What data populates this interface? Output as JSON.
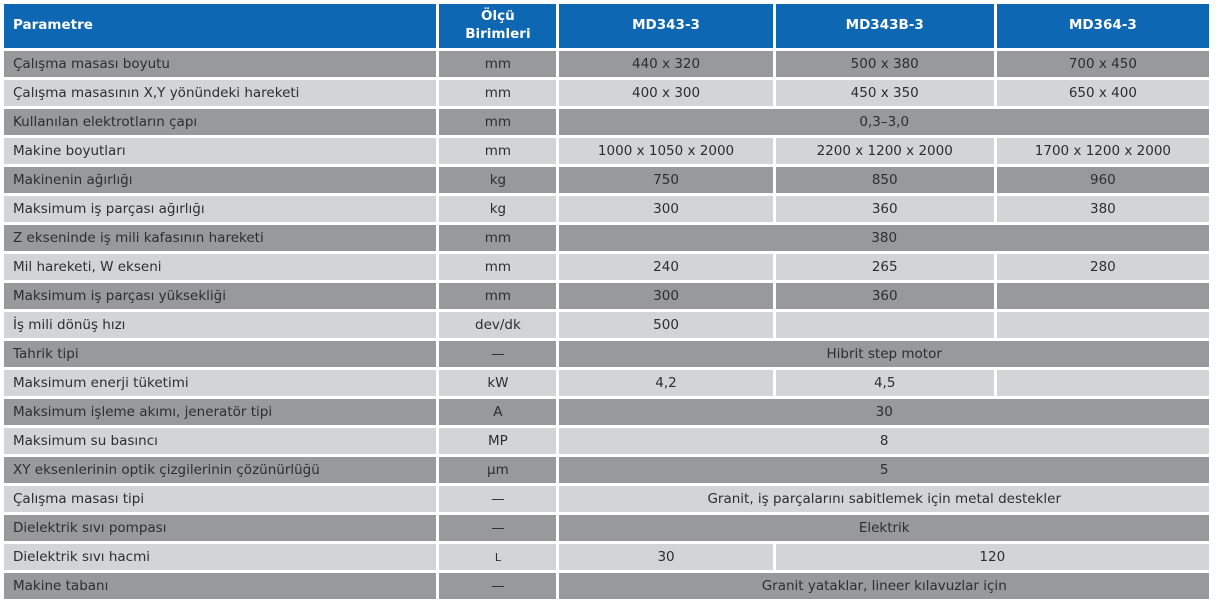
{
  "colors": {
    "header_bg": "#0e67b2",
    "header_text": "#ffffff",
    "row_dark_bg": "#98999b",
    "row_light_bg": "#d3d4d5",
    "cell_text": "#2d2e30",
    "separator": "#ffffff"
  },
  "table": {
    "columns": [
      "Parametre",
      "Ölçü Birimleri",
      "MD343-3",
      "MD343B-3",
      "MD364-3"
    ],
    "rows": [
      {
        "parameter": "Çalışma masası boyutu",
        "unit": "mm",
        "values": [
          "440 x 320",
          "500 x 380",
          "700 x 450"
        ]
      },
      {
        "parameter": "Çalışma masasının X,Y yönündeki hareketi",
        "unit": "mm",
        "values": [
          "400 x 300",
          "450 x 350",
          "650 x 400"
        ]
      },
      {
        "parameter": "Kullanılan elektrotların çapı",
        "unit": "mm",
        "values": [
          "0,3–3,0"
        ]
      },
      {
        "parameter": "Makine boyutları",
        "unit": "mm",
        "values": [
          "1000 x 1050 x 2000",
          "2200 x 1200 x 2000",
          "1700 x 1200 x 2000"
        ]
      },
      {
        "parameter": "Makinenin ağırlığı",
        "unit": "kg",
        "values": [
          "750",
          "850",
          "960"
        ]
      },
      {
        "parameter": "Maksimum iş parçası ağırlığı",
        "unit": "kg",
        "values": [
          "300",
          "360",
          "380"
        ]
      },
      {
        "parameter": "Z ekseninde iş mili kafasının hareketi",
        "unit": "mm",
        "values": [
          "380"
        ]
      },
      {
        "parameter": "Mil hareketi, W ekseni",
        "unit": "mm",
        "values": [
          "240",
          "265",
          "280"
        ]
      },
      {
        "parameter": "Maksimum iş parçası yüksekliği",
        "unit": "mm",
        "values": [
          "300",
          "360",
          ""
        ]
      },
      {
        "parameter": "İş mili dönüş hızı",
        "unit": "dev/dk",
        "values": [
          "500",
          "",
          ""
        ]
      },
      {
        "parameter": "Tahrik tipi",
        "unit": "—",
        "values": [
          "Hibrit step motor"
        ]
      },
      {
        "parameter": "Maksimum enerji tüketimi",
        "unit": "kW",
        "values": [
          "4,2",
          "4,5",
          ""
        ]
      },
      {
        "parameter": "Maksimum işleme akımı, jeneratör tipi",
        "unit": "A",
        "values": [
          "30"
        ]
      },
      {
        "parameter": "Maksimum su basıncı",
        "unit": "MP",
        "values": [
          "8"
        ]
      },
      {
        "parameter": "XY eksenlerinin optik çizgilerinin çözünürlüğü",
        "unit": "μm",
        "values": [
          "5"
        ]
      },
      {
        "parameter": "Çalışma masası tipi",
        "unit": "—",
        "values": [
          "Granit, iş parçalarını sabitlemek için metal destekler"
        ]
      },
      {
        "parameter": "Dielektrik sıvı pompası",
        "unit": "—",
        "values": [
          "Elektrik"
        ]
      },
      {
        "parameter": "Dielektrik sıvı hacmi",
        "unit": "L",
        "values": [
          "30",
          "120"
        ]
      },
      {
        "parameter": "Makine tabanı",
        "unit": "—",
        "values": [
          "Granit yataklar, lineer kılavuzlar için"
        ]
      }
    ]
  }
}
